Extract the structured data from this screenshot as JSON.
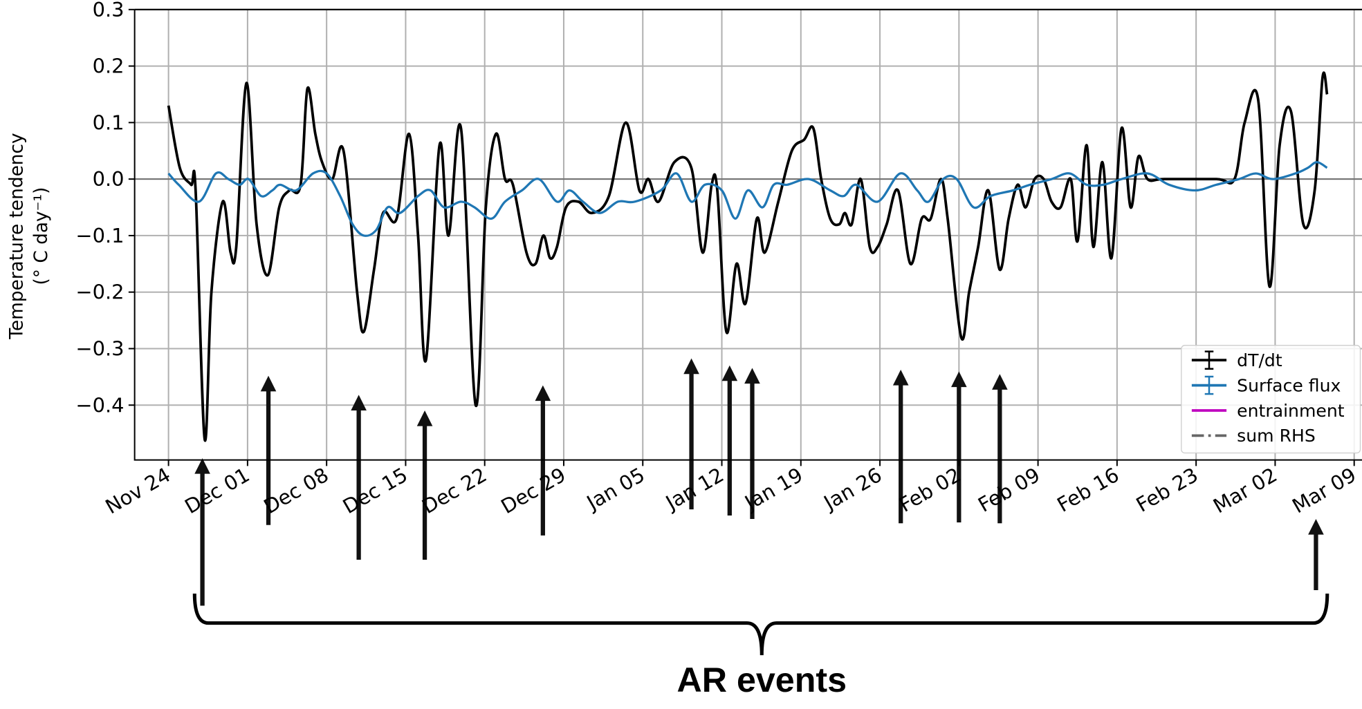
{
  "chart_data": {
    "type": "line",
    "ylabel": [
      "Temperature tendency",
      "(° C day⁻¹)"
    ],
    "annotation": "AR events",
    "xlim": [
      -3,
      106
    ],
    "ylim": [
      -0.497,
      0.3
    ],
    "xticks": [
      {
        "value": 0,
        "label": "Nov 24"
      },
      {
        "value": 7,
        "label": "Dec 01"
      },
      {
        "value": 14,
        "label": "Dec 08"
      },
      {
        "value": 21,
        "label": "Dec 15"
      },
      {
        "value": 28,
        "label": "Dec 22"
      },
      {
        "value": 35,
        "label": "Dec 29"
      },
      {
        "value": 42,
        "label": "Jan 05"
      },
      {
        "value": 49,
        "label": "Jan 12"
      },
      {
        "value": 56,
        "label": "Jan 19"
      },
      {
        "value": 63,
        "label": "Jan 26"
      },
      {
        "value": 70,
        "label": "Feb 02"
      },
      {
        "value": 77,
        "label": "Feb 09"
      },
      {
        "value": 84,
        "label": "Feb 16"
      },
      {
        "value": 91,
        "label": "Feb 23"
      },
      {
        "value": 98,
        "label": "Mar 02"
      },
      {
        "value": 105,
        "label": "Mar 09"
      }
    ],
    "yticks": [
      0.3,
      0.2,
      0.1,
      {
        "value": 0,
        "label": "0.0"
      },
      {
        "value": -0.1,
        "label": "−0.1"
      },
      {
        "value": -0.2,
        "label": "−0.2"
      },
      {
        "value": -0.3,
        "label": "−0.3"
      },
      {
        "value": -0.4,
        "label": "−0.4"
      }
    ],
    "grid": true,
    "hline": 0,
    "legend": "lower right",
    "series": [
      {
        "name": "dT/dt",
        "color": "#000000",
        "x": [
          0,
          1,
          2,
          2.4,
          3.2,
          3.8,
          4.8,
          5.5,
          6,
          6.9,
          7.8,
          8.8,
          9.8,
          10.7,
          11.7,
          12.3,
          13,
          13.6,
          14.5,
          15.5,
          16.7,
          17.3,
          18.2,
          19,
          20.2,
          21.3,
          22.1,
          22.8,
          24,
          24.8,
          25.9,
          27.2,
          28.1,
          29,
          29.8,
          30.5,
          31.7,
          32.5,
          33.2,
          33.8,
          34.4,
          35.2,
          36.3,
          37.5,
          39,
          40.5,
          41.7,
          42.5,
          43.4,
          44.8,
          46.3,
          47.3,
          48.1,
          48.6,
          49.4,
          50.3,
          51.1,
          52.1,
          52.8,
          54,
          55.2,
          56.3,
          57.1,
          57.8,
          58.6,
          59.4,
          59.9,
          60.5,
          61.3,
          62.1,
          62.8,
          63.6,
          64.6,
          65.7,
          66.7,
          67.5,
          68.4,
          69,
          70.2,
          70.9,
          71.7,
          72.6,
          73.6,
          74.4,
          75.2,
          75.9,
          76.7,
          77.5,
          78.2,
          79,
          79.9,
          80.5,
          81.3,
          81.9,
          82.7,
          83.5,
          84.4,
          85.2,
          85.9,
          86.7,
          88.2,
          92.8,
          94.4,
          95.3,
          96.5,
          97.5,
          98.4,
          99.4,
          100.5,
          101.5,
          102.2,
          102.6
        ],
        "values": [
          0.13,
          0.02,
          -0.01,
          -0.02,
          -0.46,
          -0.2,
          -0.04,
          -0.13,
          -0.12,
          0.17,
          -0.08,
          -0.17,
          -0.05,
          -0.02,
          -0.01,
          0.16,
          0.08,
          0.03,
          0,
          0.05,
          -0.2,
          -0.27,
          -0.16,
          -0.06,
          -0.07,
          0.08,
          -0.1,
          -0.32,
          0.06,
          -0.1,
          0.09,
          -0.4,
          -0.05,
          0.08,
          0,
          -0.01,
          -0.13,
          -0.15,
          -0.1,
          -0.14,
          -0.12,
          -0.05,
          -0.04,
          -0.06,
          -0.03,
          0.1,
          -0.02,
          0,
          -0.04,
          0.03,
          0.02,
          -0.13,
          -0.01,
          -0.02,
          -0.27,
          -0.15,
          -0.22,
          -0.07,
          -0.13,
          -0.04,
          0.05,
          0.07,
          0.09,
          0,
          -0.07,
          -0.08,
          -0.06,
          -0.08,
          0,
          -0.12,
          -0.12,
          -0.08,
          -0.02,
          -0.15,
          -0.07,
          -0.07,
          0,
          -0.07,
          -0.28,
          -0.2,
          -0.12,
          -0.02,
          -0.16,
          -0.07,
          -0.01,
          -0.05,
          0,
          0,
          -0.04,
          -0.05,
          0,
          -0.11,
          0.06,
          -0.12,
          0.03,
          -0.14,
          0.09,
          -0.05,
          0.04,
          0,
          0,
          0,
          0,
          0.1,
          0.14,
          -0.19,
          0.06,
          0.12,
          -0.08,
          -0.02,
          0.18,
          0.15
        ]
      },
      {
        "name": "Surface flux",
        "color": "#1f77b4",
        "x": [
          0,
          0.9,
          2.7,
          4.2,
          5.3,
          6.3,
          7.1,
          8.2,
          9.2,
          9.9,
          11.3,
          12.8,
          14,
          15.2,
          16.3,
          17.3,
          18.4,
          19.4,
          20.5,
          22.1,
          23.2,
          24.4,
          25.9,
          27.1,
          28.6,
          29.8,
          31.3,
          32.8,
          34.4,
          35.5,
          36.7,
          38.2,
          39.8,
          41.3,
          43.6,
          45,
          46.3,
          47.5,
          49,
          50.2,
          51.3,
          52.6,
          53.6,
          54.8,
          56.7,
          58.6,
          59.8,
          60.9,
          62.8,
          64.8,
          66.3,
          67.3,
          68.6,
          69.8,
          71.3,
          72.8,
          74.8,
          76.3,
          78.2,
          79.8,
          81.3,
          82.8,
          84.4,
          86.7,
          88.6,
          90.9,
          92.8,
          94.8,
          96.3,
          97.8,
          99.8,
          100.9,
          101.7,
          102.6
        ],
        "values": [
          0.01,
          -0.01,
          -0.04,
          0.01,
          0,
          -0.01,
          0,
          -0.03,
          -0.02,
          -0.01,
          -0.02,
          0.01,
          0.01,
          -0.03,
          -0.08,
          -0.1,
          -0.09,
          -0.05,
          -0.06,
          -0.03,
          -0.02,
          -0.05,
          -0.04,
          -0.05,
          -0.07,
          -0.04,
          -0.02,
          0,
          -0.04,
          -0.02,
          -0.04,
          -0.06,
          -0.04,
          -0.04,
          -0.02,
          0.01,
          -0.04,
          -0.01,
          -0.02,
          -0.07,
          -0.02,
          -0.05,
          -0.01,
          -0.01,
          0,
          -0.02,
          -0.03,
          -0.01,
          -0.04,
          0.01,
          -0.02,
          -0.04,
          0,
          0,
          -0.05,
          -0.03,
          -0.02,
          -0.01,
          0,
          0.01,
          -0.01,
          -0.01,
          0,
          0.01,
          -0.01,
          -0.02,
          -0.01,
          0,
          0.01,
          0,
          0.01,
          0.02,
          0.03,
          0.02
        ]
      },
      {
        "name": "entrainment",
        "color": "#bf00bf",
        "x": [],
        "values": []
      },
      {
        "name": "sum RHS",
        "color": "#666666",
        "dash": "dashdot",
        "x": [],
        "values": []
      }
    ]
  }
}
